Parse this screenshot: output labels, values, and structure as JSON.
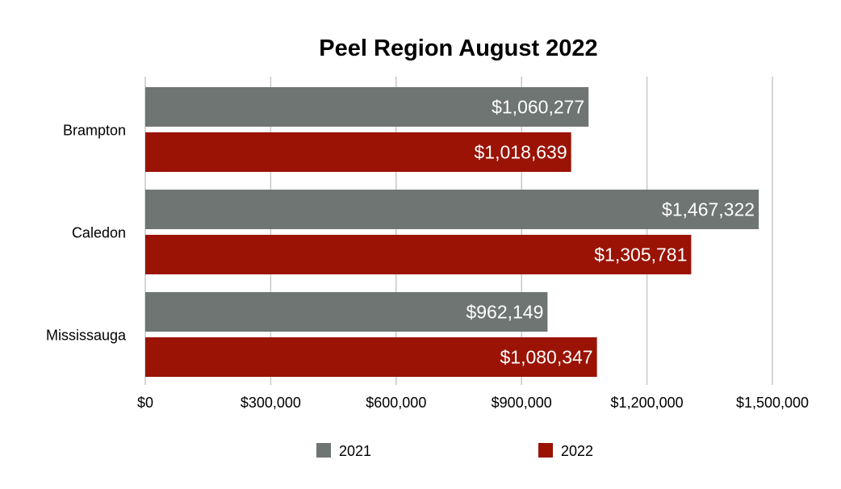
{
  "chart_data": {
    "type": "bar",
    "orientation": "horizontal",
    "title": "Peel Region August 2022",
    "xlabel": "",
    "ylabel": "",
    "categories": [
      "Brampton",
      "Caledon",
      "Mississauga"
    ],
    "series": [
      {
        "name": "2021",
        "color": "#6e7572",
        "values": [
          1060277,
          1467322,
          962149
        ],
        "labels": [
          "$1,060,277",
          "$1,467,322",
          "$962,149"
        ]
      },
      {
        "name": "2022",
        "color": "#9a1305",
        "values": [
          1018639,
          1305781,
          1080347
        ],
        "labels": [
          "$1,018,639",
          "$1,305,781",
          "$1,080,347"
        ]
      }
    ],
    "xlim": [
      0,
      1500000
    ],
    "x_ticks": [
      0,
      300000,
      600000,
      900000,
      1200000,
      1500000
    ],
    "x_tick_labels": [
      "$0",
      "$300,000",
      "$600,000",
      "$900,000",
      "$1,200,000",
      "$1,500,000"
    ],
    "grid": true,
    "legend_position": "bottom"
  }
}
